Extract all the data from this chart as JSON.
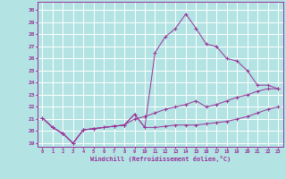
{
  "xlabel": "Windchill (Refroidissement éolien,°C)",
  "background_color": "#b3e3e3",
  "grid_color": "#ffffff",
  "line_color": "#993399",
  "x_ticks": [
    0,
    1,
    2,
    3,
    4,
    5,
    6,
    7,
    8,
    9,
    10,
    11,
    12,
    13,
    14,
    15,
    16,
    17,
    18,
    19,
    20,
    21,
    22,
    23
  ],
  "y_ticks": [
    19,
    20,
    21,
    22,
    23,
    24,
    25,
    26,
    27,
    28,
    29,
    30
  ],
  "ylim": [
    18.7,
    30.7
  ],
  "xlim": [
    -0.5,
    23.5
  ],
  "line1_x": [
    0,
    1,
    2,
    3,
    4,
    5,
    6,
    7,
    8,
    9,
    10,
    11,
    12,
    13,
    14,
    15,
    16,
    17,
    18,
    19,
    20,
    21,
    22,
    23
  ],
  "line1_y": [
    21.1,
    20.3,
    19.8,
    19.0,
    20.1,
    20.2,
    20.3,
    20.4,
    20.5,
    21.4,
    20.3,
    20.3,
    20.4,
    20.5,
    20.5,
    20.5,
    20.6,
    20.7,
    20.8,
    21.0,
    21.2,
    21.5,
    21.8,
    22.0
  ],
  "line2_x": [
    0,
    1,
    2,
    3,
    4,
    5,
    6,
    7,
    8,
    9,
    10,
    11,
    12,
    13,
    14,
    15,
    16,
    17,
    18,
    19,
    20,
    21,
    22,
    23
  ],
  "line2_y": [
    21.1,
    20.3,
    19.8,
    19.0,
    20.1,
    20.2,
    20.3,
    20.4,
    20.5,
    21.4,
    20.3,
    26.5,
    27.8,
    28.5,
    29.7,
    28.5,
    27.2,
    27.0,
    26.0,
    25.8,
    25.0,
    23.8,
    23.8,
    23.5
  ],
  "line3_x": [
    0,
    1,
    2,
    3,
    4,
    5,
    6,
    7,
    8,
    9,
    10,
    11,
    12,
    13,
    14,
    15,
    16,
    17,
    18,
    19,
    20,
    21,
    22,
    23
  ],
  "line3_y": [
    21.1,
    20.3,
    19.8,
    19.0,
    20.1,
    20.2,
    20.3,
    20.4,
    20.5,
    21.0,
    21.2,
    21.5,
    21.8,
    22.0,
    22.2,
    22.5,
    22.0,
    22.2,
    22.5,
    22.8,
    23.0,
    23.3,
    23.5,
    23.5
  ]
}
